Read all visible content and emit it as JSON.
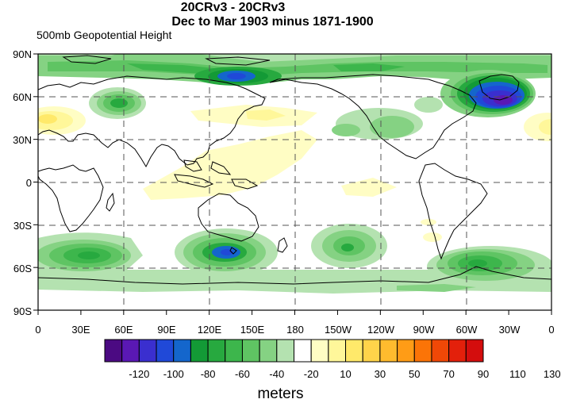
{
  "title_line1": "20CRv3 - 20CRv3",
  "title_line2": "Dec to Mar 1903 minus 1871-1900",
  "subtitle": "500mb Geopotential Height",
  "lat_labels": [
    "90N",
    "60N",
    "30N",
    "0",
    "30S",
    "60S",
    "90S"
  ],
  "lon_labels": [
    "0",
    "30E",
    "60E",
    "90E",
    "120E",
    "150E",
    "180",
    "150W",
    "120W",
    "90W",
    "60W",
    "30W",
    "0"
  ],
  "colorbar": {
    "labels": [
      "-120",
      "-100",
      "-80",
      "-60",
      "-40",
      "-20",
      "10",
      "30",
      "50",
      "70",
      "90",
      "110",
      "130"
    ],
    "units": "meters",
    "colors": [
      "#4b0a82",
      "#5a18b4",
      "#3a2fcf",
      "#2049d8",
      "#1466cc",
      "#139a36",
      "#27a93f",
      "#3db64c",
      "#5fc463",
      "#85d283",
      "#b4e2b0",
      "#ffffff",
      "#fffdc4",
      "#fff79a",
      "#ffe96a",
      "#ffd44a",
      "#ffbb2e",
      "#ff9c16",
      "#fb7407",
      "#f04807",
      "#e3200b",
      "#d40d0d"
    ]
  },
  "map_colors": {
    "land_line": "#000000",
    "grid_line": "#555555"
  }
}
